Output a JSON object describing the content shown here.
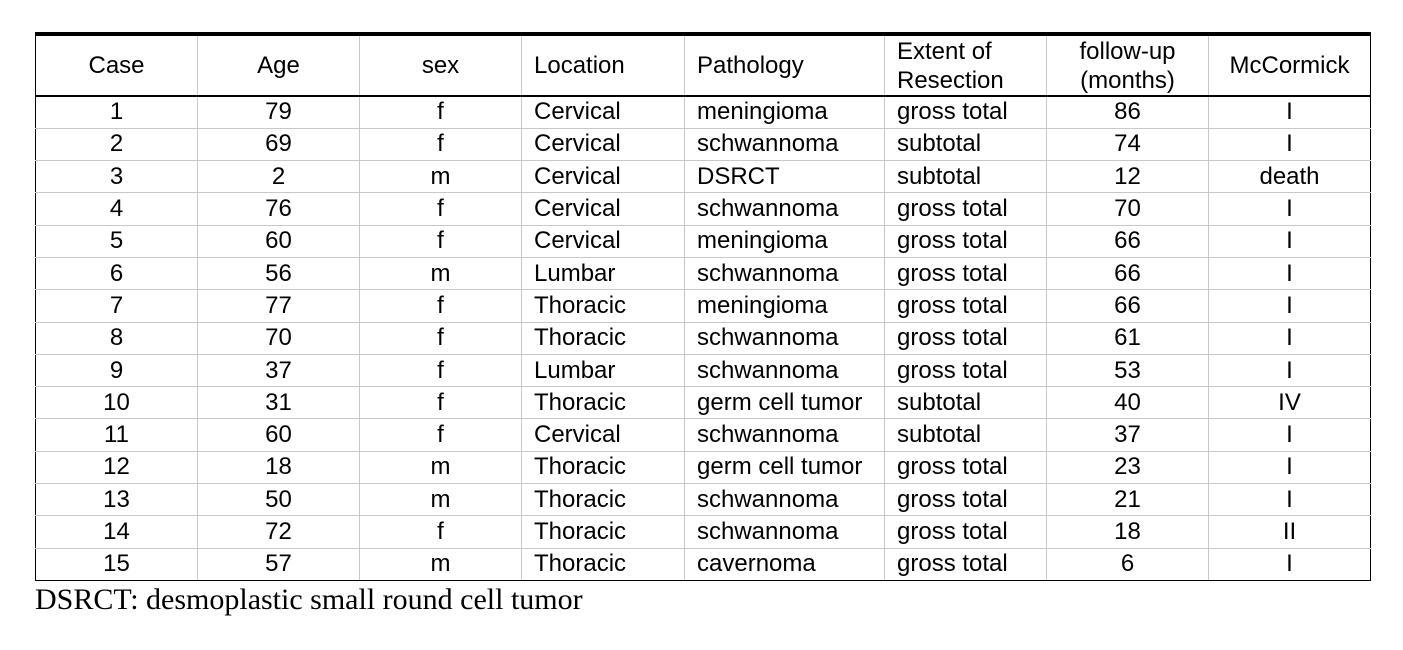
{
  "table": {
    "headers": [
      "Case",
      "Age",
      "sex",
      "Location",
      "Pathology",
      "Extent of Resection",
      "follow-up (months)",
      "McCormick"
    ],
    "rows": [
      [
        "1",
        "79",
        "f",
        "Cervical",
        "meningioma",
        "gross total",
        "86",
        "I"
      ],
      [
        "2",
        "69",
        "f",
        "Cervical",
        "schwannoma",
        "subtotal",
        "74",
        "I"
      ],
      [
        "3",
        "2",
        "m",
        "Cervical",
        "DSRCT",
        "subtotal",
        "12",
        "death"
      ],
      [
        "4",
        "76",
        "f",
        "Cervical",
        "schwannoma",
        "gross total",
        "70",
        "I"
      ],
      [
        "5",
        "60",
        "f",
        "Cervical",
        "meningioma",
        "gross total",
        "66",
        "I"
      ],
      [
        "6",
        "56",
        "m",
        "Lumbar",
        "schwannoma",
        "gross total",
        "66",
        "I"
      ],
      [
        "7",
        "77",
        "f",
        "Thoracic",
        "meningioma",
        "gross total",
        "66",
        "I"
      ],
      [
        "8",
        "70",
        "f",
        "Thoracic",
        "schwannoma",
        "gross total",
        "61",
        "I"
      ],
      [
        "9",
        "37",
        "f",
        "Lumbar",
        "schwannoma",
        "gross total",
        "53",
        "I"
      ],
      [
        "10",
        "31",
        "f",
        "Thoracic",
        "germ cell tumor",
        "subtotal",
        "40",
        "IV"
      ],
      [
        "11",
        "60",
        "f",
        "Cervical",
        "schwannoma",
        "subtotal",
        "37",
        "I"
      ],
      [
        "12",
        "18",
        "m",
        "Thoracic",
        "germ cell tumor",
        "gross total",
        "23",
        "I"
      ],
      [
        "13",
        "50",
        "m",
        "Thoracic",
        "schwannoma",
        "gross total",
        "21",
        "I"
      ],
      [
        "14",
        "72",
        "f",
        "Thoracic",
        "schwannoma",
        "gross total",
        "18",
        "II"
      ],
      [
        "15",
        "57",
        "m",
        "Thoracic",
        "cavernoma",
        "gross total",
        "6",
        "I"
      ]
    ]
  },
  "footnote": "DSRCT: desmoplastic small round cell tumor"
}
